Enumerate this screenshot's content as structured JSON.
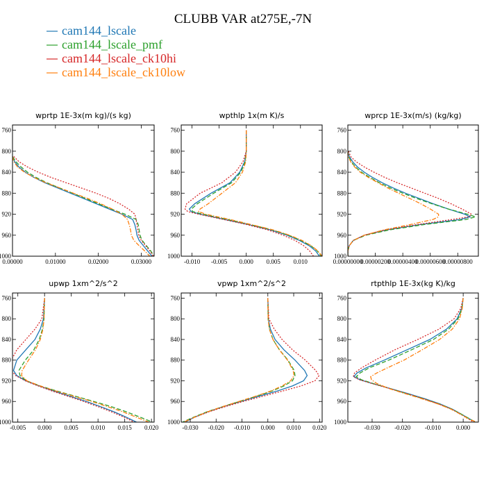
{
  "figure": {
    "title": "CLUBB VAR at275E,-7N",
    "legend": [
      {
        "name": "cam144_lscale",
        "color": "#1f77b4",
        "dash": "solid"
      },
      {
        "name": "cam144_lscale_pmf",
        "color": "#2ca02c",
        "dash": "dashed"
      },
      {
        "name": "cam144_lscale_ck10hi",
        "color": "#d62728",
        "dash": "dotted"
      },
      {
        "name": "cam144_lscale_ck10low",
        "color": "#ff7f0e",
        "dash": "dashdot"
      }
    ],
    "legend_position": "top-left"
  },
  "chart_data": [
    {
      "type": "line",
      "title": "wprtp  1E-3x(m kg)/(s kg)",
      "xlim": [
        0.0,
        0.033
      ],
      "ylim": [
        1000,
        750
      ],
      "xticks": [
        0.0,
        0.01,
        0.02,
        0.03
      ],
      "xtick_labels": [
        "0.00000",
        "0.01000",
        "0.02000",
        "0.03000"
      ],
      "yticks": [
        760,
        800,
        840,
        880,
        920,
        960,
        1000
      ],
      "ytick_labels": [
        "760",
        "800",
        "840",
        "880",
        "920",
        "960",
        "1000"
      ],
      "y": [
        810,
        820,
        830,
        840,
        850,
        860,
        870,
        880,
        890,
        900,
        910,
        920,
        930,
        940,
        950,
        960,
        970,
        980,
        990,
        1000
      ],
      "series": [
        {
          "name": "cam144_lscale",
          "x": [
            0.0,
            0.0005,
            0.0015,
            0.003,
            0.005,
            0.0075,
            0.0105,
            0.0135,
            0.0165,
            0.0195,
            0.0225,
            0.0255,
            0.028,
            0.0285,
            0.0288,
            0.029,
            0.0295,
            0.0305,
            0.0315,
            0.0325
          ]
        },
        {
          "name": "cam144_lscale_pmf",
          "x": [
            0.0,
            0.0008,
            0.002,
            0.0035,
            0.0055,
            0.008,
            0.011,
            0.014,
            0.017,
            0.02,
            0.023,
            0.0262,
            0.0288,
            0.0293,
            0.0295,
            0.0297,
            0.0302,
            0.0312,
            0.0322,
            0.033
          ]
        },
        {
          "name": "cam144_lscale_ck10hi",
          "x": [
            0.0003,
            0.0015,
            0.0035,
            0.006,
            0.009,
            0.0125,
            0.016,
            0.0195,
            0.0225,
            0.025,
            0.027,
            0.0285,
            0.0288,
            0.029,
            0.0292,
            0.0294,
            0.03,
            0.031,
            0.032,
            0.0328
          ]
        },
        {
          "name": "cam144_lscale_ck10low",
          "x": [
            0.0,
            0.0003,
            0.0012,
            0.0028,
            0.005,
            0.0078,
            0.011,
            0.0142,
            0.0175,
            0.0205,
            0.0232,
            0.0255,
            0.0268,
            0.0272,
            0.0275,
            0.0277,
            0.0283,
            0.0295,
            0.0308,
            0.032
          ]
        }
      ]
    },
    {
      "type": "line",
      "title": "wpthlp  1x(m K)/s",
      "xlim": [
        -0.012,
        0.014
      ],
      "ylim": [
        1000,
        750
      ],
      "xticks": [
        -0.01,
        -0.005,
        0.0,
        0.005,
        0.01
      ],
      "xtick_labels": [
        "-0.010",
        "-0.005",
        "0.000",
        "0.005",
        "0.010"
      ],
      "yticks": [
        760,
        800,
        840,
        880,
        920,
        960,
        1000
      ],
      "ytick_labels": [
        "760",
        "800",
        "840",
        "880",
        "920",
        "960",
        "1000"
      ],
      "y": [
        760,
        800,
        820,
        840,
        860,
        880,
        900,
        910,
        915,
        920,
        930,
        940,
        950,
        960,
        970,
        980,
        990,
        1000
      ],
      "series": [
        {
          "name": "cam144_lscale",
          "x": [
            0.0,
            0.0,
            -0.0003,
            -0.0012,
            -0.003,
            -0.0065,
            -0.0095,
            -0.0105,
            -0.0102,
            -0.0085,
            -0.004,
            0.0005,
            0.0045,
            0.0075,
            0.0098,
            0.0116,
            0.0128,
            0.0135
          ]
        },
        {
          "name": "cam144_lscale_pmf",
          "x": [
            0.0,
            0.0,
            -0.0002,
            -0.001,
            -0.0027,
            -0.006,
            -0.009,
            -0.0101,
            -0.0099,
            -0.008,
            -0.0035,
            0.0008,
            0.0048,
            0.0078,
            0.0101,
            0.0119,
            0.0131,
            0.0138
          ]
        },
        {
          "name": "cam144_lscale_ck10hi",
          "x": [
            0.0,
            0.0,
            -0.0006,
            -0.002,
            -0.0045,
            -0.0085,
            -0.011,
            -0.0113,
            -0.0108,
            -0.0088,
            -0.0042,
            0.0002,
            0.004,
            0.0068,
            0.009,
            0.0106,
            0.0117,
            0.0124
          ]
        },
        {
          "name": "cam144_lscale_ck10low",
          "x": [
            0.0,
            0.0,
            -0.0001,
            -0.0007,
            -0.002,
            -0.0045,
            -0.007,
            -0.0085,
            -0.0088,
            -0.0075,
            -0.003,
            0.001,
            0.005,
            0.008,
            0.0103,
            0.012,
            0.0132,
            0.014
          ]
        }
      ]
    },
    {
      "type": "line",
      "title": "wprcp  1E-3x(m/s) (kg/kg)",
      "xlim": [
        0.0,
        9.5e-06
      ],
      "ylim": [
        1000,
        750
      ],
      "xticks": [
        0.0,
        2e-06,
        4e-06,
        6e-06,
        8e-06
      ],
      "xtick_labels": [
        "0.00000000",
        "0.00000200",
        "0.00000400",
        "0.00000600",
        "0.00000800"
      ],
      "yticks": [
        760,
        800,
        840,
        880,
        920,
        960,
        1000
      ],
      "ytick_labels": [
        "760",
        "800",
        "840",
        "880",
        "920",
        "960",
        "1000"
      ],
      "y": [
        800,
        810,
        820,
        830,
        840,
        850,
        860,
        870,
        880,
        890,
        900,
        910,
        920,
        925,
        930,
        940,
        950,
        960,
        970,
        980,
        990,
        1000
      ],
      "series": [
        {
          "name": "cam144_lscale",
          "x": [
            0.0,
            1e-07,
            3.5e-07,
            7e-07,
            1.2e-06,
            1.8e-06,
            2.5e-06,
            3.3e-06,
            4.2e-06,
            5.2e-06,
            6.2e-06,
            7.3e-06,
            8.5e-06,
            8.9e-06,
            8.2e-06,
            5.2e-06,
            2.8e-06,
            1.2e-06,
            4e-07,
            1e-07,
            0.0,
            0.0
          ]
        },
        {
          "name": "cam144_lscale_pmf",
          "x": [
            0.0,
            5e-08,
            2.5e-07,
            5.5e-07,
            1e-06,
            1.6e-06,
            2.3e-06,
            3.1e-06,
            4e-06,
            5e-06,
            6.1e-06,
            7.3e-06,
            8.7e-06,
            9.3e-06,
            8.6e-06,
            5.5e-06,
            3e-06,
            1.3e-06,
            4e-07,
            1e-07,
            0.0,
            0.0
          ]
        },
        {
          "name": "cam144_lscale_ck10hi",
          "x": [
            5e-08,
            2e-07,
            6e-07,
            1.2e-06,
            1.9e-06,
            2.7e-06,
            3.6e-06,
            4.6e-06,
            5.6e-06,
            6.6e-06,
            7.5e-06,
            8.3e-06,
            9e-06,
            8.8e-06,
            7.6e-06,
            5e-06,
            2.7e-06,
            1.2e-06,
            4e-07,
            1e-07,
            0.0,
            0.0
          ]
        },
        {
          "name": "cam144_lscale_ck10low",
          "x": [
            0.0,
            3e-08,
            2e-07,
            5e-07,
            9e-07,
            1.5e-06,
            2.2e-06,
            2.9e-06,
            3.7e-06,
            4.5e-06,
            5.3e-06,
            6e-06,
            6.6e-06,
            6.6e-06,
            6.2e-06,
            4.5e-06,
            2.6e-06,
            1.2e-06,
            4e-07,
            1e-07,
            0.0,
            0.0
          ]
        }
      ]
    },
    {
      "type": "line",
      "title": "upwp  1xm^2/s^2",
      "xlim": [
        -0.006,
        0.0205
      ],
      "ylim": [
        1000,
        750
      ],
      "xticks": [
        -0.005,
        0.0,
        0.005,
        0.01,
        0.015,
        0.02
      ],
      "xtick_labels": [
        "-0.005",
        "0.000",
        "0.005",
        "0.010",
        "0.015",
        "0.020"
      ],
      "yticks": [
        760,
        800,
        840,
        880,
        920,
        960,
        1000
      ],
      "ytick_labels": [
        "760",
        "800",
        "840",
        "880",
        "920",
        "960",
        "1000"
      ],
      "y": [
        760,
        800,
        820,
        840,
        860,
        880,
        900,
        910,
        920,
        930,
        940,
        950,
        960,
        970,
        980,
        990,
        1000
      ],
      "series": [
        {
          "name": "cam144_lscale",
          "x": [
            0.0,
            -0.0002,
            -0.0008,
            -0.0018,
            -0.0035,
            -0.0052,
            -0.0058,
            -0.0052,
            -0.0035,
            -0.001,
            0.0018,
            0.0048,
            0.0078,
            0.0105,
            0.013,
            0.0152,
            0.0172
          ]
        },
        {
          "name": "cam144_lscale_pmf",
          "x": [
            0.0,
            -0.0001,
            -0.0004,
            -0.001,
            -0.002,
            -0.0036,
            -0.0048,
            -0.0046,
            -0.0034,
            -0.0008,
            0.0024,
            0.0058,
            0.0092,
            0.0125,
            0.0153,
            0.0178,
            0.0202
          ]
        },
        {
          "name": "cam144_lscale_ck10hi",
          "x": [
            0.0,
            -0.0005,
            -0.0018,
            -0.0035,
            -0.0052,
            -0.0062,
            -0.0062,
            -0.0054,
            -0.0036,
            -0.0012,
            0.0015,
            0.0044,
            0.0073,
            0.01,
            0.0125,
            0.0148,
            0.0168
          ]
        },
        {
          "name": "cam144_lscale_ck10low",
          "x": [
            0.0,
            -0.0001,
            -0.0003,
            -0.0008,
            -0.0017,
            -0.003,
            -0.0042,
            -0.0043,
            -0.0033,
            -0.0008,
            0.0022,
            0.0055,
            0.0088,
            0.0118,
            0.0146,
            0.0171,
            0.0195
          ]
        }
      ]
    },
    {
      "type": "line",
      "title": "vpwp  1xm^2/s^2",
      "xlim": [
        -0.0335,
        0.021
      ],
      "ylim": [
        1000,
        750
      ],
      "xticks": [
        -0.03,
        -0.02,
        -0.01,
        0.0,
        0.01,
        0.02
      ],
      "xtick_labels": [
        "-0.030",
        "-0.020",
        "-0.010",
        "0.000",
        "0.010",
        "0.020"
      ],
      "yticks": [
        760,
        800,
        840,
        880,
        920,
        960,
        1000
      ],
      "ytick_labels": [
        "760",
        "800",
        "840",
        "880",
        "920",
        "960",
        "1000"
      ],
      "y": [
        760,
        800,
        820,
        840,
        860,
        880,
        900,
        910,
        920,
        930,
        940,
        950,
        960,
        970,
        980,
        990,
        1000
      ],
      "series": [
        {
          "name": "cam144_lscale",
          "x": [
            0.0,
            0.0002,
            0.001,
            0.0028,
            0.0062,
            0.0105,
            0.0142,
            0.0152,
            0.0138,
            0.0095,
            0.0035,
            -0.0035,
            -0.0105,
            -0.0172,
            -0.0232,
            -0.0282,
            -0.032
          ]
        },
        {
          "name": "cam144_lscale_pmf",
          "x": [
            0.0,
            0.0001,
            0.0006,
            0.002,
            0.0045,
            0.0078,
            0.0102,
            0.0105,
            0.0095,
            0.0062,
            0.0015,
            -0.0045,
            -0.011,
            -0.0175,
            -0.0235,
            -0.0285,
            -0.033
          ]
        },
        {
          "name": "cam144_lscale_ck10hi",
          "x": [
            0.0,
            0.0004,
            0.0025,
            0.0055,
            0.0095,
            0.0145,
            0.0185,
            0.0198,
            0.0182,
            0.0128,
            0.0055,
            -0.002,
            -0.0095,
            -0.0165,
            -0.0228,
            -0.028,
            -0.0325
          ]
        },
        {
          "name": "cam144_lscale_ck10low",
          "x": [
            0.0,
            0.0001,
            0.0006,
            0.002,
            0.0044,
            0.0076,
            0.0098,
            0.0101,
            0.0088,
            0.0055,
            0.001,
            -0.0048,
            -0.0112,
            -0.0175,
            -0.0233,
            -0.0282,
            -0.0325
          ]
        }
      ]
    },
    {
      "type": "line",
      "title": "rtpthlp  1E-3x(kg K)/kg",
      "xlim": [
        -0.038,
        0.005
      ],
      "ylim": [
        1000,
        750
      ],
      "xticks": [
        -0.03,
        -0.02,
        -0.01,
        0.0
      ],
      "xtick_labels": [
        "-0.030",
        "-0.020",
        "-0.010",
        "0.000"
      ],
      "yticks": [
        760,
        800,
        840,
        880,
        920,
        960,
        1000
      ],
      "ytick_labels": [
        "760",
        "800",
        "840",
        "880",
        "920",
        "960",
        "1000"
      ],
      "y": [
        760,
        780,
        800,
        820,
        840,
        860,
        880,
        895,
        905,
        912,
        918,
        925,
        935,
        945,
        955,
        965,
        975,
        985,
        995,
        1000
      ],
      "series": [
        {
          "name": "cam144_lscale",
          "x": [
            0.0,
            -0.0005,
            -0.002,
            -0.0055,
            -0.011,
            -0.0185,
            -0.026,
            -0.032,
            -0.035,
            -0.036,
            -0.034,
            -0.03,
            -0.024,
            -0.018,
            -0.0125,
            -0.0075,
            -0.0035,
            -0.0005,
            0.0025,
            0.004
          ]
        },
        {
          "name": "cam144_lscale_pmf",
          "x": [
            0.0,
            -0.0004,
            -0.0017,
            -0.0048,
            -0.0098,
            -0.017,
            -0.0245,
            -0.031,
            -0.034,
            -0.0352,
            -0.0335,
            -0.0298,
            -0.0242,
            -0.0185,
            -0.013,
            -0.0078,
            -0.0037,
            -0.0005,
            0.0025,
            0.0042
          ]
        },
        {
          "name": "cam144_lscale_ck10hi",
          "x": [
            0.0,
            -0.0008,
            -0.003,
            -0.008,
            -0.015,
            -0.0225,
            -0.029,
            -0.0335,
            -0.0358,
            -0.0362,
            -0.0342,
            -0.0302,
            -0.0242,
            -0.0185,
            -0.013,
            -0.008,
            -0.0038,
            -0.0008,
            0.002,
            0.0035
          ]
        },
        {
          "name": "cam144_lscale_ck10low",
          "x": [
            0.0,
            -0.0003,
            -0.0012,
            -0.0036,
            -0.0078,
            -0.0135,
            -0.0195,
            -0.025,
            -0.0285,
            -0.0305,
            -0.0302,
            -0.0285,
            -0.0245,
            -0.019,
            -0.0135,
            -0.0082,
            -0.004,
            -0.0008,
            0.0022,
            0.0045
          ]
        }
      ]
    }
  ]
}
